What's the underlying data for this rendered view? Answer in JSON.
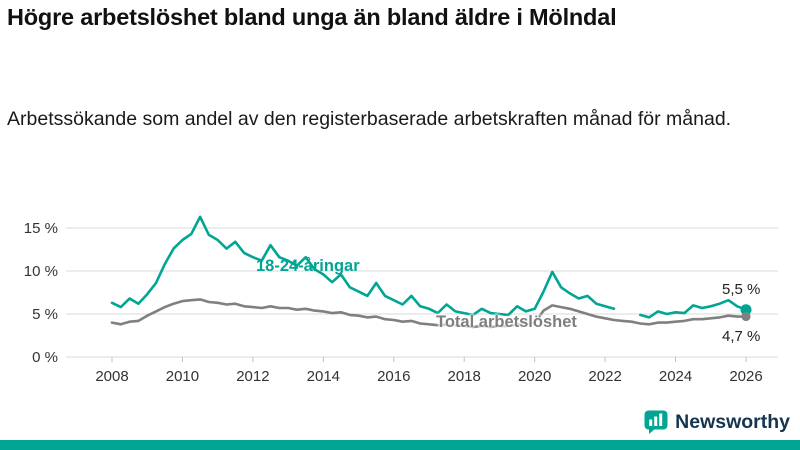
{
  "colors": {
    "accent": "#00a693",
    "total_line": "#808080",
    "grid": "#d9d9d9",
    "tick_text": "#333333",
    "wordmark": "#16344f"
  },
  "footer": {
    "brand": "Newsworthy"
  },
  "chart_data": {
    "type": "line",
    "title": "Högre arbetslöshet bland unga än bland äldre i Mölndal",
    "subtitle": "Arbetssökande som andel av den registerbaserade arbetskraften månad för månad.",
    "grid": "horizontal",
    "legend": "inline-labels",
    "x_unit": "year",
    "xlim": [
      2007.8,
      2026.9
    ],
    "ylim": [
      0,
      17
    ],
    "yticks": [
      0,
      5,
      10,
      15
    ],
    "ytick_labels": [
      "0 %",
      "5 %",
      "10 %",
      "15 %"
    ],
    "xticks": [
      2008,
      2010,
      2012,
      2014,
      2016,
      2018,
      2020,
      2022,
      2024,
      2026
    ],
    "x": [
      2008,
      2008.25,
      2008.5,
      2008.75,
      2009,
      2009.25,
      2009.5,
      2009.75,
      2010,
      2010.25,
      2010.5,
      2010.75,
      2011,
      2011.25,
      2011.5,
      2011.75,
      2012,
      2012.25,
      2012.5,
      2012.75,
      2013,
      2013.25,
      2013.5,
      2013.75,
      2014,
      2014.25,
      2014.5,
      2014.75,
      2015,
      2015.25,
      2015.5,
      2015.75,
      2016,
      2016.25,
      2016.5,
      2016.75,
      2017,
      2017.25,
      2017.5,
      2017.75,
      2018,
      2018.25,
      2018.5,
      2018.75,
      2019,
      2019.25,
      2019.5,
      2019.75,
      2020,
      2020.25,
      2020.5,
      2020.75,
      2021,
      2021.25,
      2021.5,
      2021.75,
      2022,
      2022.25,
      2022.5,
      2022.75,
      2023,
      2023.25,
      2023.5,
      2023.75,
      2024,
      2024.25,
      2024.5,
      2024.75,
      2025,
      2025.25,
      2025.5,
      2025.75,
      2026
    ],
    "series": [
      {
        "name": "18-24-åringar",
        "color": "#00a693",
        "end_label": "5,5 %",
        "end_value": 5.5,
        "values": [
          6.3,
          5.8,
          6.8,
          6.2,
          7.3,
          8.6,
          10.8,
          12.6,
          13.6,
          14.3,
          16.3,
          14.2,
          13.6,
          12.6,
          13.4,
          12.1,
          11.6,
          11.2,
          13.0,
          11.6,
          11.2,
          10.6,
          11.6,
          10.2,
          9.6,
          8.7,
          9.6,
          8.1,
          7.6,
          7.1,
          8.6,
          7.1,
          6.6,
          6.1,
          7.1,
          5.9,
          5.6,
          5.1,
          6.1,
          5.3,
          5.1,
          4.9,
          5.6,
          5.1,
          5.0,
          4.9,
          5.9,
          5.3,
          5.6,
          7.6,
          9.9,
          8.1,
          7.4,
          6.8,
          7.1,
          6.2,
          5.9,
          5.6,
          null,
          null,
          4.9,
          4.6,
          5.3,
          5.0,
          5.2,
          5.1,
          6.0,
          5.7,
          5.9,
          6.2,
          6.6,
          5.9,
          5.5
        ]
      },
      {
        "name": "Total arbetslöshet",
        "color": "#808080",
        "end_label": "4,7 %",
        "end_value": 4.7,
        "values": [
          4.0,
          3.8,
          4.1,
          4.2,
          4.8,
          5.3,
          5.8,
          6.2,
          6.5,
          6.6,
          6.7,
          6.4,
          6.3,
          6.1,
          6.2,
          5.9,
          5.8,
          5.7,
          5.9,
          5.7,
          5.7,
          5.5,
          5.6,
          5.4,
          5.3,
          5.1,
          5.2,
          4.9,
          4.8,
          4.6,
          4.7,
          4.4,
          4.3,
          4.1,
          4.2,
          3.9,
          3.8,
          3.7,
          3.8,
          3.7,
          3.6,
          3.5,
          3.6,
          3.5,
          3.6,
          3.6,
          3.8,
          3.8,
          4.0,
          5.4,
          6.0,
          5.8,
          5.6,
          5.3,
          5.0,
          4.7,
          4.5,
          4.3,
          4.2,
          4.1,
          3.9,
          3.8,
          4.0,
          4.0,
          4.1,
          4.2,
          4.4,
          4.4,
          4.5,
          4.6,
          4.8,
          4.7,
          4.7
        ]
      }
    ]
  }
}
